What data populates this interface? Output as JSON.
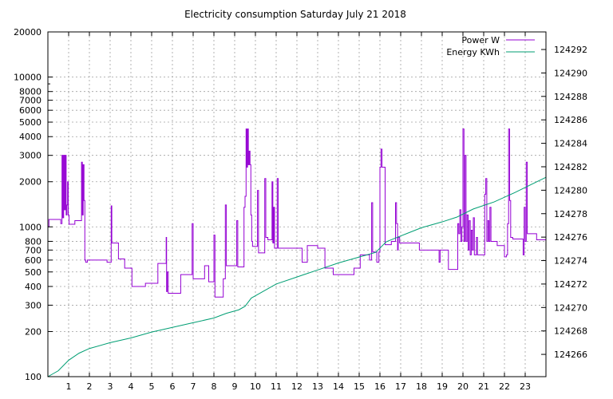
{
  "chart_data": {
    "type": "line",
    "title": "Electricity consumption Saturday July 21 2018",
    "xlabel": "",
    "ylabel": "",
    "x_range": [
      0,
      24
    ],
    "x_ticks": [
      "1",
      "2",
      "3",
      "4",
      "5",
      "6",
      "7",
      "8",
      "9",
      "10",
      "11",
      "12",
      "13",
      "14",
      "15",
      "16",
      "17",
      "18",
      "19",
      "20",
      "21",
      "22",
      "23"
    ],
    "y_left": {
      "scale": "log",
      "range": [
        100,
        20000
      ],
      "tick_labels": [
        "100",
        "200",
        "300",
        "400",
        "500",
        "600",
        "700",
        "800",
        "1000",
        "2000",
        "3000",
        "4000",
        "5000",
        "6000",
        "7000",
        "8000",
        "10000",
        "20000"
      ]
    },
    "y_right": {
      "scale": "linear",
      "range": [
        124264.1,
        124293.5
      ],
      "tick_labels": [
        "124266",
        "124268",
        "124270",
        "124272",
        "124274",
        "124276",
        "124278",
        "124280",
        "124282",
        "124284",
        "124286",
        "124288",
        "124290",
        "124292"
      ]
    },
    "grid": true,
    "legend_position": "top-right",
    "colors": {
      "power": "#9400d3",
      "energy": "#009e73"
    },
    "series": [
      {
        "name": "Power W",
        "axis": "left",
        "step": true,
        "points": [
          [
            0.0,
            1000
          ],
          [
            0.05,
            1120
          ],
          [
            0.6,
            1120
          ],
          [
            0.62,
            1050
          ],
          [
            0.68,
            3000
          ],
          [
            0.72,
            1150
          ],
          [
            0.76,
            3000
          ],
          [
            0.8,
            1300
          ],
          [
            0.84,
            3000
          ],
          [
            0.88,
            1200
          ],
          [
            0.92,
            1400
          ],
          [
            0.95,
            2000
          ],
          [
            0.98,
            1200
          ],
          [
            1.02,
            1040
          ],
          [
            1.2,
            1040
          ],
          [
            1.3,
            1100
          ],
          [
            1.55,
            1100
          ],
          [
            1.62,
            2700
          ],
          [
            1.66,
            1200
          ],
          [
            1.7,
            2600
          ],
          [
            1.74,
            1500
          ],
          [
            1.78,
            600
          ],
          [
            1.82,
            580
          ],
          [
            1.9,
            600
          ],
          [
            2.3,
            600
          ],
          [
            2.8,
            600
          ],
          [
            2.85,
            580
          ],
          [
            3.0,
            580
          ],
          [
            3.05,
            1380
          ],
          [
            3.08,
            780
          ],
          [
            3.35,
            780
          ],
          [
            3.4,
            610
          ],
          [
            3.6,
            610
          ],
          [
            3.7,
            530
          ],
          [
            4.0,
            530
          ],
          [
            4.05,
            400
          ],
          [
            4.6,
            400
          ],
          [
            4.7,
            420
          ],
          [
            5.2,
            420
          ],
          [
            5.3,
            570
          ],
          [
            5.65,
            570
          ],
          [
            5.7,
            850
          ],
          [
            5.72,
            370
          ],
          [
            5.75,
            500
          ],
          [
            5.8,
            360
          ],
          [
            6.35,
            360
          ],
          [
            6.4,
            480
          ],
          [
            6.9,
            480
          ],
          [
            6.95,
            1050
          ],
          [
            7.0,
            450
          ],
          [
            7.5,
            450
          ],
          [
            7.55,
            550
          ],
          [
            7.7,
            550
          ],
          [
            7.75,
            430
          ],
          [
            7.95,
            430
          ],
          [
            8.0,
            880
          ],
          [
            8.05,
            340
          ],
          [
            8.4,
            340
          ],
          [
            8.45,
            450
          ],
          [
            8.55,
            1400
          ],
          [
            8.6,
            550
          ],
          [
            9.05,
            550
          ],
          [
            9.1,
            1100
          ],
          [
            9.15,
            540
          ],
          [
            9.4,
            540
          ],
          [
            9.45,
            1350
          ],
          [
            9.5,
            1600
          ],
          [
            9.55,
            4500
          ],
          [
            9.58,
            2500
          ],
          [
            9.62,
            4500
          ],
          [
            9.66,
            2600
          ],
          [
            9.7,
            3200
          ],
          [
            9.74,
            2600
          ],
          [
            9.78,
            1200
          ],
          [
            9.82,
            800
          ],
          [
            9.86,
            740
          ],
          [
            10.05,
            740
          ],
          [
            10.1,
            1750
          ],
          [
            10.15,
            670
          ],
          [
            10.4,
            670
          ],
          [
            10.45,
            2100
          ],
          [
            10.5,
            850
          ],
          [
            10.6,
            820
          ],
          [
            10.75,
            820
          ],
          [
            10.8,
            2000
          ],
          [
            10.84,
            780
          ],
          [
            10.88,
            1350
          ],
          [
            10.92,
            720
          ],
          [
            11.0,
            720
          ],
          [
            11.05,
            2100
          ],
          [
            11.1,
            720
          ],
          [
            11.7,
            720
          ],
          [
            12.2,
            720
          ],
          [
            12.25,
            580
          ],
          [
            12.4,
            580
          ],
          [
            12.5,
            750
          ],
          [
            12.9,
            750
          ],
          [
            13.0,
            720
          ],
          [
            13.3,
            720
          ],
          [
            13.35,
            530
          ],
          [
            13.7,
            530
          ],
          [
            13.75,
            480
          ],
          [
            14.7,
            480
          ],
          [
            14.75,
            530
          ],
          [
            15.0,
            530
          ],
          [
            15.05,
            650
          ],
          [
            15.4,
            650
          ],
          [
            15.5,
            600
          ],
          [
            15.6,
            1450
          ],
          [
            15.65,
            680
          ],
          [
            15.8,
            680
          ],
          [
            15.85,
            580
          ],
          [
            15.95,
            680
          ],
          [
            16.0,
            2500
          ],
          [
            16.05,
            3300
          ],
          [
            16.1,
            2500
          ],
          [
            16.2,
            2500
          ],
          [
            16.25,
            760
          ],
          [
            16.5,
            760
          ],
          [
            16.55,
            800
          ],
          [
            16.7,
            800
          ],
          [
            16.75,
            1450
          ],
          [
            16.8,
            1050
          ],
          [
            16.85,
            700
          ],
          [
            16.88,
            850
          ],
          [
            16.95,
            780
          ],
          [
            17.6,
            780
          ],
          [
            17.8,
            780
          ],
          [
            17.9,
            700
          ],
          [
            18.4,
            700
          ],
          [
            18.8,
            700
          ],
          [
            18.85,
            580
          ],
          [
            18.9,
            700
          ],
          [
            19.2,
            700
          ],
          [
            19.3,
            520
          ],
          [
            19.7,
            520
          ],
          [
            19.75,
            1050
          ],
          [
            19.8,
            900
          ],
          [
            19.85,
            1300
          ],
          [
            19.9,
            800
          ],
          [
            19.95,
            1000
          ],
          [
            20.0,
            4500
          ],
          [
            20.05,
            800
          ],
          [
            20.1,
            3000
          ],
          [
            20.15,
            800
          ],
          [
            20.2,
            1200
          ],
          [
            20.25,
            700
          ],
          [
            20.3,
            1100
          ],
          [
            20.35,
            650
          ],
          [
            20.4,
            950
          ],
          [
            20.45,
            700
          ],
          [
            20.5,
            1150
          ],
          [
            20.55,
            650
          ],
          [
            20.6,
            650
          ],
          [
            20.65,
            850
          ],
          [
            20.7,
            650
          ],
          [
            21.0,
            650
          ],
          [
            21.05,
            1650
          ],
          [
            21.1,
            2100
          ],
          [
            21.15,
            800
          ],
          [
            21.2,
            1100
          ],
          [
            21.25,
            800
          ],
          [
            21.3,
            1350
          ],
          [
            21.35,
            800
          ],
          [
            21.6,
            800
          ],
          [
            21.65,
            750
          ],
          [
            21.95,
            750
          ],
          [
            22.0,
            630
          ],
          [
            22.1,
            650
          ],
          [
            22.15,
            1050
          ],
          [
            22.2,
            4500
          ],
          [
            22.25,
            1500
          ],
          [
            22.3,
            850
          ],
          [
            22.4,
            830
          ],
          [
            22.85,
            830
          ],
          [
            22.9,
            650
          ],
          [
            22.95,
            1350
          ],
          [
            23.0,
            800
          ],
          [
            23.05,
            2700
          ],
          [
            23.1,
            900
          ],
          [
            23.5,
            900
          ],
          [
            23.55,
            820
          ],
          [
            24.0,
            820
          ]
        ]
      },
      {
        "name": "Energy KWh",
        "axis": "right",
        "step": false,
        "points": [
          [
            0.0,
            124264.1
          ],
          [
            0.5,
            124264.6
          ],
          [
            1.0,
            124265.5
          ],
          [
            1.5,
            124266.1
          ],
          [
            2.0,
            124266.5
          ],
          [
            3.0,
            124267.0
          ],
          [
            4.0,
            124267.4
          ],
          [
            5.0,
            124267.9
          ],
          [
            6.0,
            124268.3
          ],
          [
            7.0,
            124268.7
          ],
          [
            8.0,
            124269.1
          ],
          [
            8.6,
            124269.5
          ],
          [
            9.2,
            124269.8
          ],
          [
            9.5,
            124270.1
          ],
          [
            9.8,
            124270.8
          ],
          [
            10.2,
            124271.2
          ],
          [
            11.0,
            124272.0
          ],
          [
            12.0,
            124272.6
          ],
          [
            13.0,
            124273.2
          ],
          [
            14.0,
            124273.8
          ],
          [
            15.0,
            124274.3
          ],
          [
            15.8,
            124274.7
          ],
          [
            16.3,
            124275.6
          ],
          [
            17.0,
            124276.1
          ],
          [
            18.0,
            124276.8
          ],
          [
            19.0,
            124277.3
          ],
          [
            19.7,
            124277.7
          ],
          [
            20.5,
            124278.4
          ],
          [
            21.5,
            124279.0
          ],
          [
            22.5,
            124279.8
          ],
          [
            23.3,
            124280.5
          ],
          [
            24.0,
            124281.1
          ]
        ]
      }
    ]
  }
}
